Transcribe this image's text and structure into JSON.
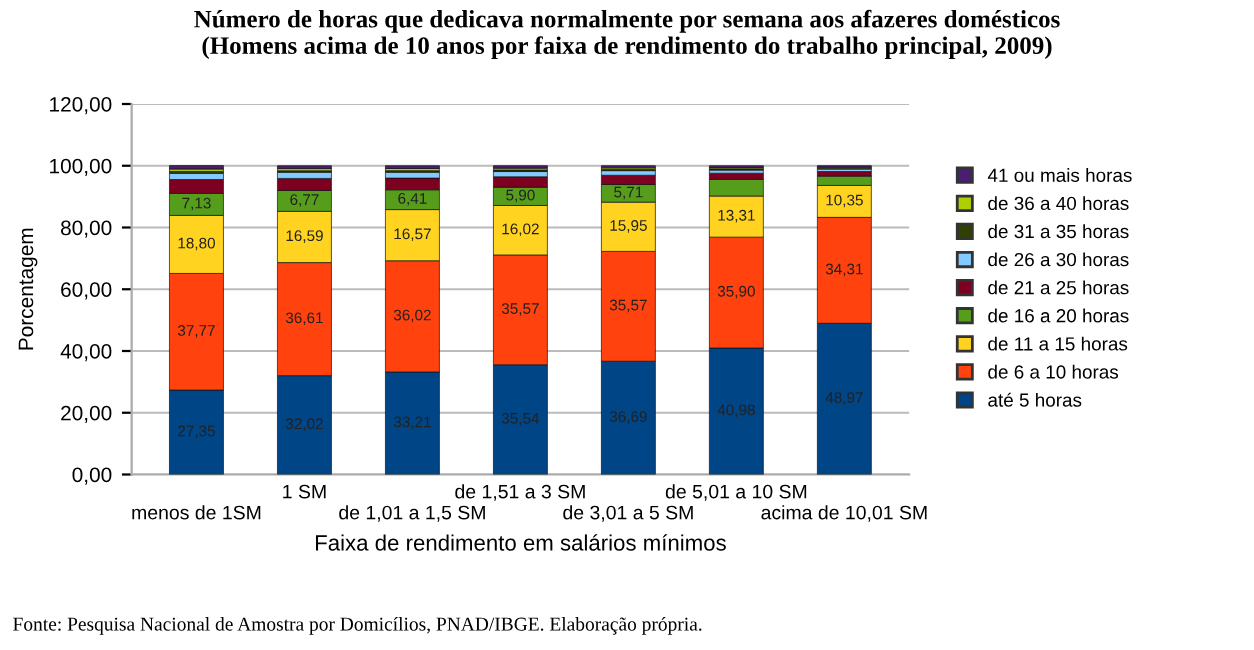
{
  "chart_data": {
    "type": "bar",
    "stacked": true,
    "title": "Número de horas que dedicava normalmente por semana aos afazeres domésticos\n(Homens acima de 10 anos por faixa de rendimento do trabalho principal, 2009)",
    "xlabel": "Faixa de rendimento em salários mínimos",
    "ylabel": "Porcentagem",
    "categories": [
      "menos de 1SM",
      "1 SM",
      "de 1,01 a 1,5 SM",
      "de 1,51 a 3 SM",
      "de 3,01 a 5 SM",
      "de 5,01 a 10 SM",
      "acima de 10,01 SM"
    ],
    "series": [
      {
        "name": "até 5 horas",
        "color": "#004586",
        "values": [
          27.35,
          32.02,
          33.21,
          35.54,
          36.69,
          40.98,
          48.97
        ],
        "value_labels": [
          "27,35",
          "32,02",
          "33,21",
          "35,54",
          "36,69",
          "40,98",
          "48,97"
        ]
      },
      {
        "name": "de 6 a 10 horas",
        "color": "#ff420e",
        "values": [
          37.77,
          36.61,
          36.02,
          35.57,
          35.57,
          35.9,
          34.31
        ],
        "value_labels": [
          "37,77",
          "36,61",
          "36,02",
          "35,57",
          "35,57",
          "35,90",
          "34,31"
        ]
      },
      {
        "name": "de 11 a 15 horas",
        "color": "#ffd320",
        "values": [
          18.8,
          16.59,
          16.57,
          16.02,
          15.95,
          13.31,
          10.35
        ],
        "value_labels": [
          "18,80",
          "16,59",
          "16,57",
          "16,02",
          "15,95",
          "13,31",
          "10,35"
        ]
      },
      {
        "name": "de 16 a 20 horas",
        "color": "#579d1c",
        "values": [
          7.13,
          6.77,
          6.41,
          5.9,
          5.71,
          5.4,
          3.0
        ],
        "value_labels": [
          "7,13",
          "6,77",
          "6,41",
          "5,90",
          "5,71",
          null,
          null
        ]
      },
      {
        "name": "de 21 a 25 horas",
        "color": "#7e0021",
        "values": [
          4.5,
          3.9,
          3.8,
          3.4,
          3.0,
          2.0,
          1.5
        ]
      },
      {
        "name": "de 26 a 30 horas",
        "color": "#83caff",
        "values": [
          2.0,
          2.0,
          1.9,
          1.7,
          1.5,
          1.0,
          0.8
        ]
      },
      {
        "name": "de 31 a 35 horas",
        "color": "#314004",
        "values": [
          0.6,
          0.5,
          0.5,
          0.5,
          0.4,
          0.4,
          0.3
        ]
      },
      {
        "name": "de 36 a 40 horas",
        "color": "#aecf00",
        "values": [
          0.8,
          0.7,
          0.7,
          0.6,
          0.5,
          0.4,
          0.3
        ]
      },
      {
        "name": "41 ou mais horas",
        "color": "#4b1f6f",
        "values": [
          1.1,
          0.9,
          0.9,
          0.8,
          0.7,
          0.6,
          0.5
        ]
      }
    ],
    "ylim": [
      0,
      120
    ],
    "yticks": [
      {
        "value": 0,
        "label": "0,00"
      },
      {
        "value": 20,
        "label": "20,00"
      },
      {
        "value": 40,
        "label": "40,00"
      },
      {
        "value": 60,
        "label": "60,00"
      },
      {
        "value": 80,
        "label": "80,00"
      },
      {
        "value": 100,
        "label": "100,00"
      },
      {
        "value": 120,
        "label": "120,00"
      }
    ],
    "grid": "y",
    "legend": "right",
    "annotations": [
      "Fonte: Pesquisa Nacional de Amostra por Domicílios, PNAD/IBGE. Elaboração própria."
    ]
  }
}
